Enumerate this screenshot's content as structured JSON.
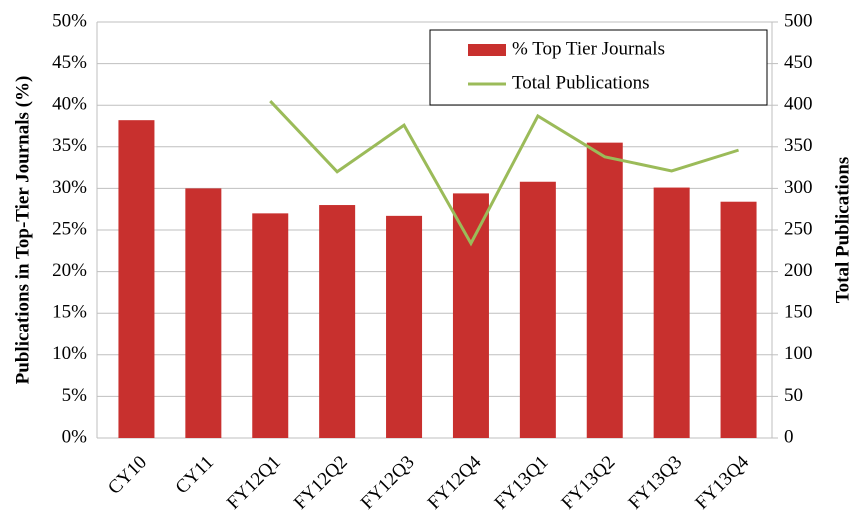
{
  "chart_data": {
    "type": "bar",
    "y_label": "Publications in Top-Tier Journals (%)",
    "y2_label": "Total Publications",
    "categories": [
      "CY10",
      "CY11",
      "FY12Q1",
      "FY12Q2",
      "FY12Q3",
      "FY12Q4",
      "FY13Q1",
      "FY13Q2",
      "FY13Q3",
      "FY13Q4"
    ],
    "series": [
      {
        "name": "% Top Tier Journals",
        "type": "bar",
        "color": "#c8302e",
        "values": [
          38.2,
          30,
          27,
          28,
          26.7,
          29.4,
          30.8,
          35.5,
          30.1,
          28.4
        ]
      },
      {
        "name": "Total Publications",
        "type": "line",
        "axis": "y2",
        "color": "#9bbb59",
        "values": [
          null,
          null,
          405,
          320,
          376,
          234,
          387,
          338,
          321,
          346
        ]
      }
    ],
    "ylim": [
      0,
      50
    ],
    "yticks": [
      {
        "value": 0,
        "label": "0%"
      },
      {
        "value": 5,
        "label": "5%"
      },
      {
        "value": 10,
        "label": "10%"
      },
      {
        "value": 15,
        "label": "15%"
      },
      {
        "value": 20,
        "label": "20%"
      },
      {
        "value": 25,
        "label": "25%"
      },
      {
        "value": 30,
        "label": "30%"
      },
      {
        "value": 35,
        "label": "35%"
      },
      {
        "value": 40,
        "label": "40%"
      },
      {
        "value": 45,
        "label": "45%"
      },
      {
        "value": 50,
        "label": "50%"
      }
    ],
    "y2lim": [
      0,
      500
    ],
    "y2ticks": [
      0,
      50,
      100,
      150,
      200,
      250,
      300,
      350,
      400,
      450,
      500
    ],
    "grid": true,
    "legend": "top-right"
  }
}
